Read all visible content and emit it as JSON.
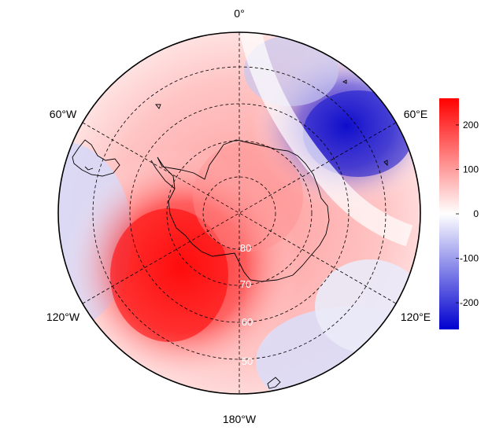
{
  "map": {
    "projection": "south-polar-stereographic",
    "longitude_labels": {
      "top": "0°",
      "upper_left": "60°W",
      "upper_right": "60°E",
      "lower_left": "120°W",
      "lower_right": "120°E",
      "bottom": "180°W"
    },
    "latitude_labels": [
      "80",
      "70",
      "60",
      "50"
    ],
    "gridlines": "dashed",
    "coastlines": true
  },
  "colorbar": {
    "ticks": [
      "200",
      "100",
      "0",
      "-100",
      "-200"
    ],
    "tick_values": [
      200,
      100,
      0,
      -100,
      -200
    ],
    "range": [
      -260,
      260
    ],
    "colors": {
      "max": "#ff0000",
      "mid": "#ffffff",
      "min": "#0000d0"
    }
  },
  "colors": {
    "positive": "#ff0000",
    "neutral": "#ffffff",
    "negative": "#0000d0",
    "coastline": "#000000",
    "grid": "#000000"
  }
}
